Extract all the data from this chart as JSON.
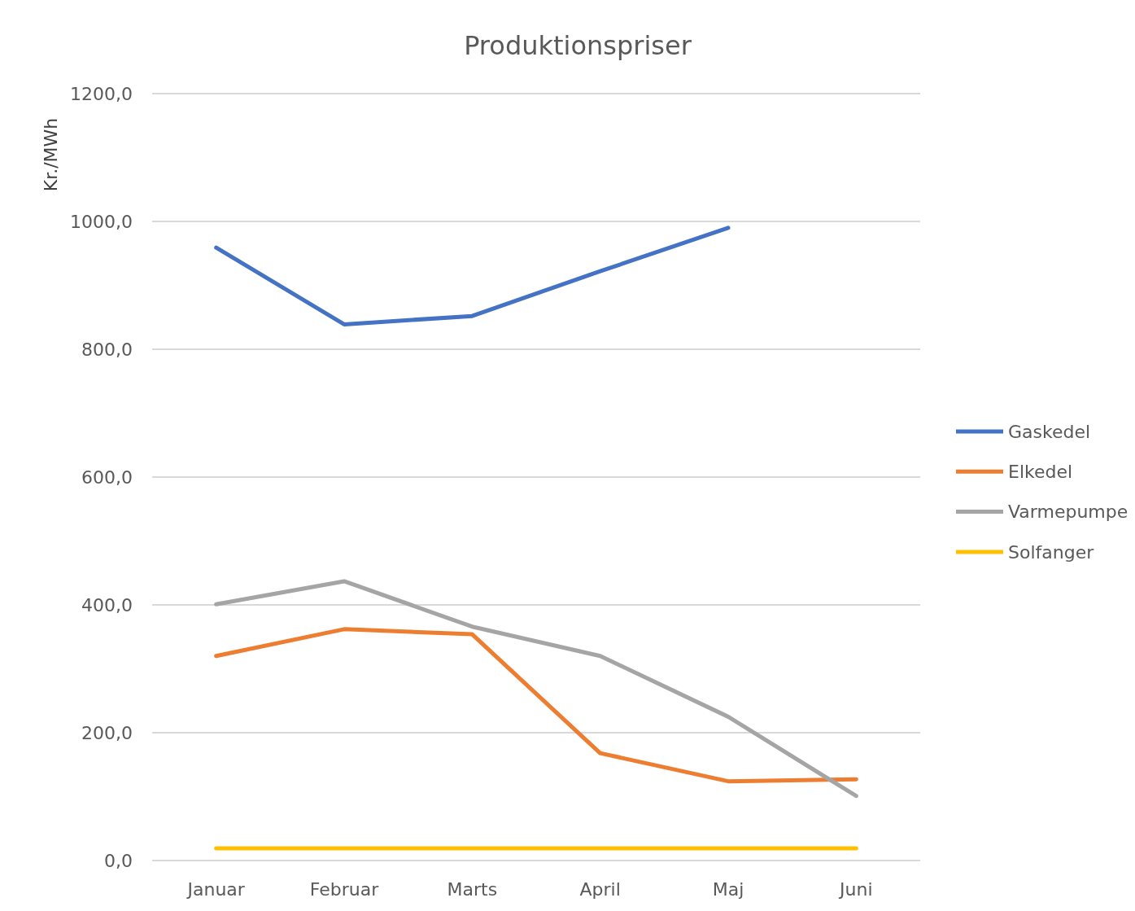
{
  "chart_data": {
    "type": "line",
    "title": "Produktionspriser",
    "ylabel": "Kr./MWh",
    "categories": [
      "Januar",
      "Februar",
      "Marts",
      "April",
      "Maj",
      "Juni"
    ],
    "series": [
      {
        "name": "Gaskedel",
        "color": "#4472c4",
        "values": [
          959,
          839,
          852,
          922,
          990,
          null
        ]
      },
      {
        "name": "Elkedel",
        "color": "#ed7d31",
        "values": [
          320,
          362,
          354,
          168,
          124,
          127
        ]
      },
      {
        "name": "Varmepumpe",
        "color": "#a5a5a5",
        "values": [
          401,
          437,
          366,
          320,
          225,
          101
        ]
      },
      {
        "name": "Solfanger",
        "color": "#ffc000",
        "values": [
          19,
          19,
          19,
          19,
          19,
          19
        ]
      }
    ],
    "ylim": [
      0,
      1200
    ],
    "yticks": [
      {
        "value": 0,
        "label": "0,0"
      },
      {
        "value": 200,
        "label": "200,0"
      },
      {
        "value": 400,
        "label": "400,0"
      },
      {
        "value": 600,
        "label": "600,0"
      },
      {
        "value": 800,
        "label": "800,0"
      },
      {
        "value": 1000,
        "label": "1000,0"
      },
      {
        "value": 1200,
        "label": "1200,0"
      }
    ],
    "grid": "y",
    "legend": "right",
    "marker": "none",
    "line_style": "solid"
  }
}
